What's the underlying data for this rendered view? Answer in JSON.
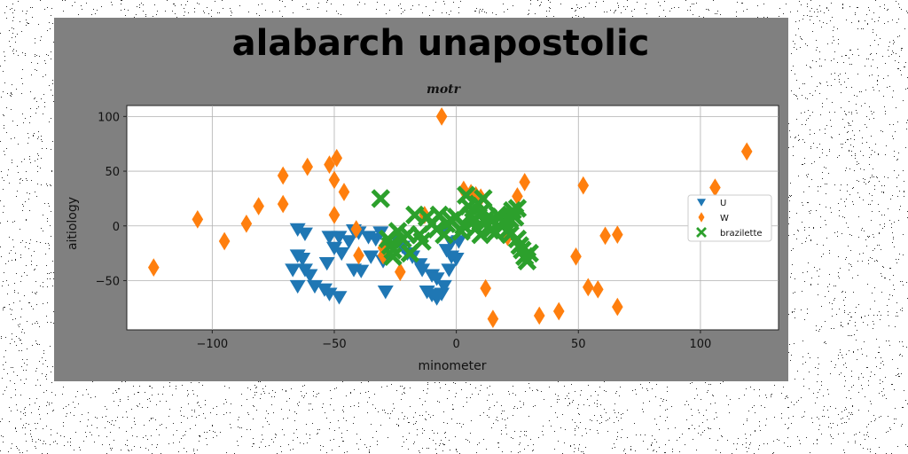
{
  "chart_data": {
    "type": "scatter",
    "title": "alabarch unapostolic",
    "subtitle": "motr",
    "xlabel": "minometer",
    "ylabel": "aitiology",
    "xlim": [
      -135,
      132
    ],
    "ylim": [
      -95,
      110
    ],
    "xticks": [
      -100,
      -50,
      0,
      50,
      100
    ],
    "xtick_labels": [
      "−100",
      "−50",
      "0",
      "50",
      "100"
    ],
    "yticks": [
      -50,
      0,
      50,
      100
    ],
    "ytick_labels": [
      "−50",
      "0",
      "50",
      "100"
    ],
    "grid": true,
    "legend_position": "center-right",
    "background": "#808080",
    "series": [
      {
        "name": "U",
        "marker": "triangle-down",
        "color": "#1f77b4",
        "points": [
          [
            -65,
            -3
          ],
          [
            -62,
            -7
          ],
          [
            -65,
            -27
          ],
          [
            -63,
            -30
          ],
          [
            -67,
            -40
          ],
          [
            -62,
            -40
          ],
          [
            -60,
            -45
          ],
          [
            -65,
            -55
          ],
          [
            -58,
            -55
          ],
          [
            -52,
            -10
          ],
          [
            -48,
            -10
          ],
          [
            -44,
            -14
          ],
          [
            -50,
            -20
          ],
          [
            -47,
            -25
          ],
          [
            -53,
            -34
          ],
          [
            -42,
            -40
          ],
          [
            -39,
            -41
          ],
          [
            -54,
            -58
          ],
          [
            -52,
            -62
          ],
          [
            -48,
            -65
          ],
          [
            -42,
            -4
          ],
          [
            -40,
            -6
          ],
          [
            -36,
            -10
          ],
          [
            -33,
            -12
          ],
          [
            -31,
            -6
          ],
          [
            -35,
            -28
          ],
          [
            -30,
            -32
          ],
          [
            -29,
            -60
          ],
          [
            -24,
            -14
          ],
          [
            -22,
            -19
          ],
          [
            -20,
            -25
          ],
          [
            -18,
            -28
          ],
          [
            -15,
            -35
          ],
          [
            -14,
            -40
          ],
          [
            -10,
            -45
          ],
          [
            -8,
            -48
          ],
          [
            -12,
            -60
          ],
          [
            -10,
            -63
          ],
          [
            -8,
            -66
          ],
          [
            -6,
            -62
          ],
          [
            -5,
            -55
          ],
          [
            -3,
            -40
          ],
          [
            0,
            -30
          ],
          [
            -2,
            -28
          ],
          [
            -4,
            -22
          ],
          [
            -2,
            -15
          ],
          [
            1,
            -14
          ],
          [
            -6,
            -5
          ]
        ]
      },
      {
        "name": "W",
        "marker": "diamond",
        "color": "#ff7f0e",
        "points": [
          [
            -124,
            -38
          ],
          [
            -106,
            6
          ],
          [
            -95,
            -14
          ],
          [
            -86,
            2
          ],
          [
            -81,
            18
          ],
          [
            -71,
            46
          ],
          [
            -71,
            20
          ],
          [
            -61,
            54
          ],
          [
            -52,
            56
          ],
          [
            -49,
            62
          ],
          [
            -50,
            42
          ],
          [
            -46,
            31
          ],
          [
            -50,
            10
          ],
          [
            -41,
            -3
          ],
          [
            -40,
            -27
          ],
          [
            -30,
            -27
          ],
          [
            -30,
            -20
          ],
          [
            -23,
            -42
          ],
          [
            -13,
            10
          ],
          [
            -6,
            100
          ],
          [
            3,
            33
          ],
          [
            6,
            30
          ],
          [
            8,
            28
          ],
          [
            10,
            26
          ],
          [
            21,
            -10
          ],
          [
            25,
            27
          ],
          [
            28,
            40
          ],
          [
            12,
            -57
          ],
          [
            15,
            -85
          ],
          [
            34,
            -82
          ],
          [
            42,
            -78
          ],
          [
            49,
            -28
          ],
          [
            52,
            37
          ],
          [
            54,
            -56
          ],
          [
            58,
            -58
          ],
          [
            61,
            -9
          ],
          [
            66,
            -8
          ],
          [
            66,
            -74
          ],
          [
            106,
            35
          ],
          [
            119,
            68
          ]
        ]
      },
      {
        "name": "brazilette",
        "marker": "x",
        "color": "#2ca02c",
        "points": [
          [
            -31,
            25
          ],
          [
            -28,
            -12
          ],
          [
            -27,
            -18
          ],
          [
            -26,
            -22
          ],
          [
            -26,
            -28
          ],
          [
            -24,
            -5
          ],
          [
            -22,
            -12
          ],
          [
            -20,
            -8
          ],
          [
            -19,
            -25
          ],
          [
            -17,
            10
          ],
          [
            -15,
            -8
          ],
          [
            -14,
            -14
          ],
          [
            -12,
            8
          ],
          [
            -10,
            2
          ],
          [
            -8,
            -3
          ],
          [
            -7,
            10
          ],
          [
            -5,
            -8
          ],
          [
            -4,
            2
          ],
          [
            -2,
            5
          ],
          [
            0,
            8
          ],
          [
            2,
            -5
          ],
          [
            3,
            0
          ],
          [
            4,
            28
          ],
          [
            5,
            18
          ],
          [
            6,
            10
          ],
          [
            7,
            4
          ],
          [
            8,
            -2
          ],
          [
            9,
            20
          ],
          [
            10,
            12
          ],
          [
            10,
            -8
          ],
          [
            11,
            25
          ],
          [
            12,
            3
          ],
          [
            13,
            8
          ],
          [
            14,
            -4
          ],
          [
            15,
            5
          ],
          [
            16,
            -6
          ],
          [
            17,
            10
          ],
          [
            18,
            8
          ],
          [
            19,
            4
          ],
          [
            20,
            2
          ],
          [
            21,
            -4
          ],
          [
            22,
            6
          ],
          [
            23,
            14
          ],
          [
            24,
            8
          ],
          [
            25,
            16
          ],
          [
            26,
            -18
          ],
          [
            27,
            -22
          ],
          [
            28,
            -28
          ],
          [
            29,
            -32
          ],
          [
            25,
            -12
          ],
          [
            22,
            -8
          ],
          [
            30,
            -25
          ]
        ]
      }
    ]
  }
}
